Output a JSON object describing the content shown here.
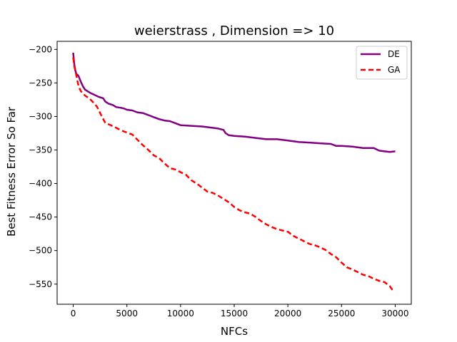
{
  "chart_data": {
    "type": "line",
    "title": "weierstrass , Dimension => 10",
    "xlabel": "NFCs",
    "ylabel": "Best Fitness Error So Far",
    "xlim": [
      -1500,
      31500
    ],
    "ylim": [
      -580,
      -188
    ],
    "xticks": [
      0,
      5000,
      10000,
      15000,
      20000,
      25000,
      30000
    ],
    "xtick_labels": [
      "0",
      "5000",
      "10000",
      "15000",
      "20000",
      "25000",
      "30000"
    ],
    "yticks": [
      -200,
      -250,
      -300,
      -350,
      -400,
      -450,
      -500,
      -550
    ],
    "ytick_labels": [
      "−200",
      "−250",
      "−300",
      "−350",
      "−400",
      "−450",
      "−500",
      "−550"
    ],
    "grid": false,
    "legend_position": "top-right",
    "series": [
      {
        "name": "DE",
        "color": "#800080",
        "style": "solid",
        "x": [
          0,
          100,
          200,
          300,
          400,
          500,
          700,
          900,
          1100,
          1300,
          1600,
          2000,
          2400,
          2800,
          3000,
          3300,
          3700,
          4000,
          4400,
          4700,
          5000,
          5500,
          6000,
          6500,
          7000,
          7500,
          8000,
          8500,
          9000,
          9500,
          10000,
          11000,
          12000,
          13000,
          13500,
          14000,
          14200,
          14500,
          15000,
          16000,
          17000,
          18000,
          19000,
          20000,
          21000,
          22000,
          23000,
          24000,
          24500,
          25000,
          26000,
          27000,
          28000,
          28500,
          29000,
          29500,
          30000
        ],
        "y": [
          -205,
          -222,
          -232,
          -237,
          -238,
          -240,
          -248,
          -255,
          -260,
          -262,
          -265,
          -268,
          -271,
          -273,
          -278,
          -281,
          -283,
          -286,
          -287,
          -288,
          -290,
          -291,
          -294,
          -295,
          -298,
          -301,
          -304,
          -306,
          -307,
          -310,
          -313,
          -314,
          -315,
          -317,
          -318,
          -320,
          -325,
          -328,
          -329,
          -330,
          -332,
          -334,
          -334,
          -336,
          -338,
          -339,
          -340,
          -341,
          -344,
          -344,
          -345,
          -347,
          -347,
          -351,
          -352,
          -353,
          -352
        ]
      },
      {
        "name": "GA",
        "color": "#ff0000",
        "style": "dashed",
        "x": [
          0,
          100,
          200,
          300,
          400,
          500,
          700,
          900,
          1200,
          1500,
          1800,
          2200,
          2600,
          3000,
          3500,
          4000,
          4500,
          5000,
          5500,
          6000,
          6500,
          7000,
          7500,
          8000,
          8500,
          9000,
          9500,
          10000,
          10500,
          11000,
          11500,
          12000,
          12500,
          13000,
          13500,
          14000,
          14500,
          15000,
          15500,
          16000,
          16500,
          17000,
          17500,
          18000,
          18500,
          19000,
          19500,
          20000,
          20500,
          21000,
          21500,
          22000,
          22500,
          23000,
          23500,
          24000,
          24500,
          25000,
          25500,
          26000,
          26500,
          27000,
          27500,
          28000,
          28500,
          29000,
          29500,
          29800
        ],
        "y": [
          -212,
          -225,
          -232,
          -240,
          -248,
          -255,
          -262,
          -266,
          -270,
          -273,
          -278,
          -285,
          -298,
          -310,
          -313,
          -317,
          -321,
          -324,
          -327,
          -335,
          -343,
          -350,
          -358,
          -362,
          -370,
          -377,
          -379,
          -383,
          -387,
          -395,
          -400,
          -406,
          -412,
          -414,
          -418,
          -423,
          -428,
          -435,
          -440,
          -443,
          -445,
          -450,
          -456,
          -461,
          -465,
          -468,
          -470,
          -472,
          -478,
          -482,
          -486,
          -490,
          -492,
          -495,
          -499,
          -505,
          -510,
          -518,
          -525,
          -528,
          -532,
          -536,
          -538,
          -542,
          -545,
          -547,
          -553,
          -560
        ]
      }
    ]
  }
}
